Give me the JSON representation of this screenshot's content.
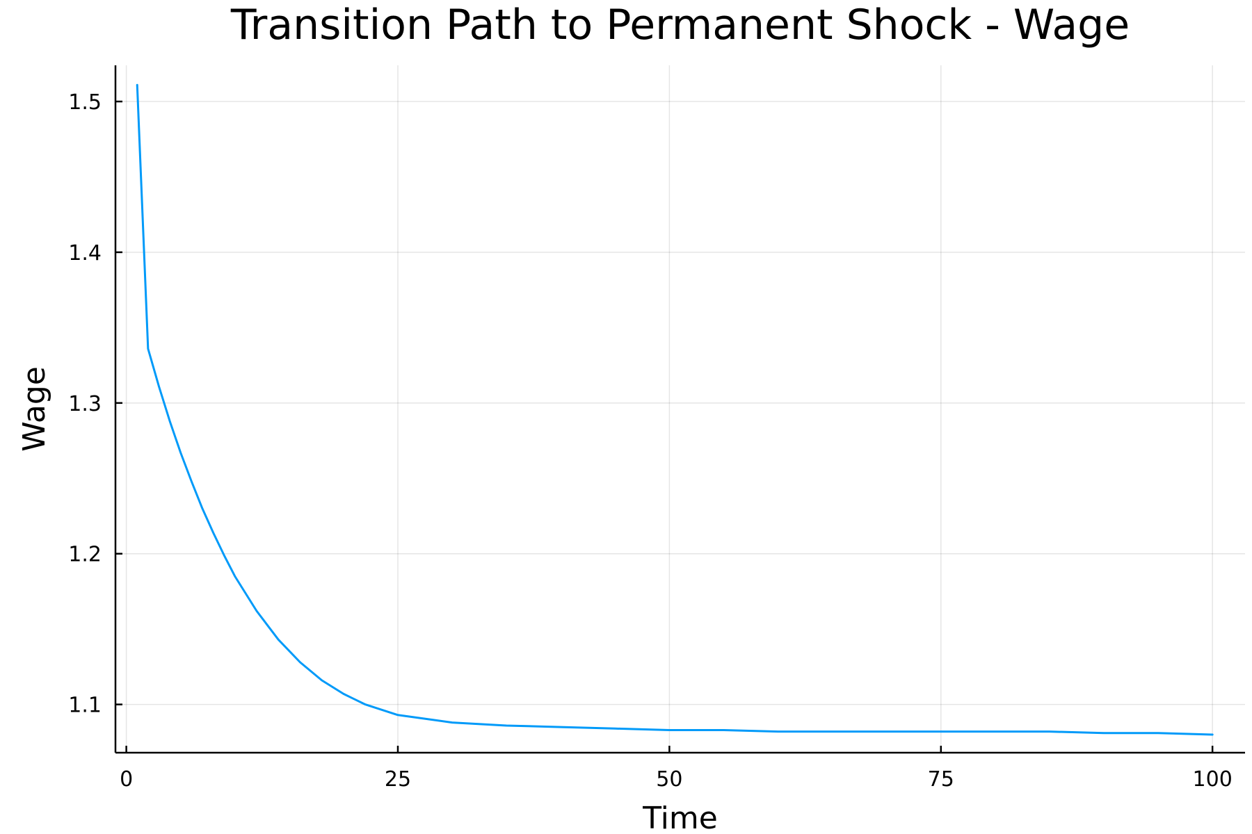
{
  "chart_data": {
    "type": "line",
    "title": "Transition Path to Permanent Shock - Wage",
    "xlabel": "Time",
    "ylabel": "Wage",
    "xlim": [
      -1,
      103
    ],
    "ylim": [
      1.068,
      1.524
    ],
    "xticks": [
      0,
      25,
      50,
      75,
      100
    ],
    "yticks": [
      1.1,
      1.2,
      1.3,
      1.4,
      1.5
    ],
    "xtick_labels": [
      "0",
      "25",
      "50",
      "75",
      "100"
    ],
    "ytick_labels": [
      "1.1",
      "1.2",
      "1.3",
      "1.4",
      "1.5"
    ],
    "grid": true,
    "legend": "none",
    "series": [
      {
        "color": "#009af9",
        "x": [
          1,
          2,
          3,
          4,
          5,
          6,
          7,
          8,
          9,
          10,
          12,
          14,
          16,
          18,
          20,
          22,
          25,
          28,
          30,
          35,
          40,
          45,
          50,
          55,
          60,
          65,
          70,
          75,
          80,
          85,
          90,
          95,
          100
        ],
        "y": [
          1.511,
          1.336,
          1.311,
          1.288,
          1.267,
          1.248,
          1.23,
          1.214,
          1.199,
          1.185,
          1.162,
          1.143,
          1.128,
          1.116,
          1.107,
          1.1,
          1.093,
          1.09,
          1.088,
          1.086,
          1.085,
          1.084,
          1.083,
          1.083,
          1.082,
          1.082,
          1.082,
          1.082,
          1.082,
          1.082,
          1.081,
          1.081,
          1.08
        ]
      }
    ]
  }
}
